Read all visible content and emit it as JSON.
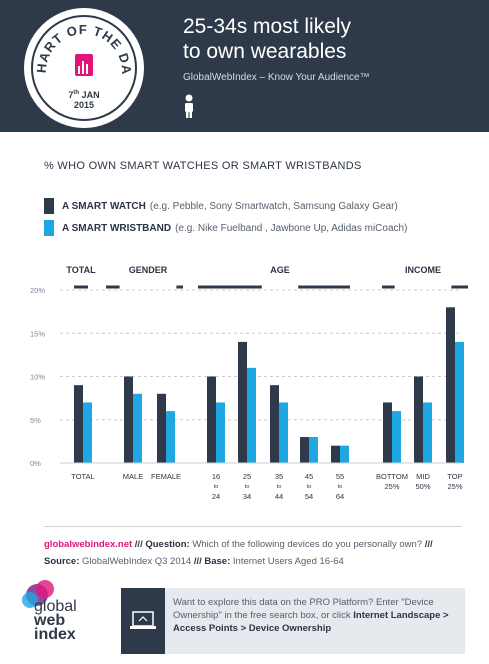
{
  "header": {
    "badge_text": "CHART OF THE DAY",
    "badge_day": "7",
    "badge_day_suffix": "th",
    "badge_month": "JAN",
    "badge_year": "2015",
    "title_line1": "25-34s most likely",
    "title_line2": "to own wearables",
    "subtitle": "GlobalWebIndex – Know Your Audience™"
  },
  "subtitle": "% WHO OWN SMART WATCHES OR SMART WRISTBANDS",
  "legend": [
    {
      "label": "A SMART WATCH",
      "detail": "(e.g. Pebble, Sony Smartwatch, Samsung Galaxy Gear)",
      "color": "#2e3a4a"
    },
    {
      "label": "A SMART WRISTBAND",
      "detail": "(e.g. Nike Fuelband , Jawbone Up, Adidas miCoach)",
      "color": "#1ea7e1"
    }
  ],
  "chart_data": {
    "type": "bar",
    "groups": [
      {
        "label": "TOTAL",
        "categories": [
          "TOTAL"
        ]
      },
      {
        "label": "GENDER",
        "categories": [
          "MALE",
          "FEMALE"
        ]
      },
      {
        "label": "AGE",
        "categories": [
          "16 to 24",
          "25 to 34",
          "35 to 44",
          "45 to 54",
          "55 to 64"
        ]
      },
      {
        "label": "INCOME",
        "categories": [
          "BOTTOM 25%",
          "MID 50%",
          "TOP 25%"
        ]
      }
    ],
    "categories": [
      "TOTAL",
      "MALE",
      "FEMALE",
      "16 to 24",
      "25 to 34",
      "35 to 44",
      "45 to 54",
      "55 to 64",
      "BOTTOM 25%",
      "MID 50%",
      "TOP 25%"
    ],
    "series": [
      {
        "name": "A SMART WATCH",
        "values": [
          9,
          10,
          8,
          10,
          14,
          9,
          3,
          2,
          7,
          10,
          18
        ]
      },
      {
        "name": "A SMART WRISTBAND",
        "values": [
          7,
          8,
          6,
          7,
          11,
          7,
          3,
          2,
          6,
          7,
          14
        ]
      }
    ],
    "yticks": [
      "0%",
      "5%",
      "10%",
      "15%",
      "20%"
    ],
    "ylim": [
      0,
      20
    ],
    "grid": true
  },
  "footer": {
    "site": "globalwebindex.net",
    "sep": "///",
    "question_label": "Question:",
    "question": "Which of the following devices do you personally own?",
    "source_label": "Source:",
    "source": "GlobalWebIndex  Q3 2014",
    "base_label": "Base:",
    "base": "Internet Users Aged 16-64",
    "logo_line1": "global",
    "logo_line2": "web",
    "logo_line3": "index",
    "cta_text": "Want to explore this data on the PRO Platform? Enter \"Device Ownership\" in the free search box, or click",
    "cta_link": "Internet Landscape > Access Points > Device Ownership"
  }
}
